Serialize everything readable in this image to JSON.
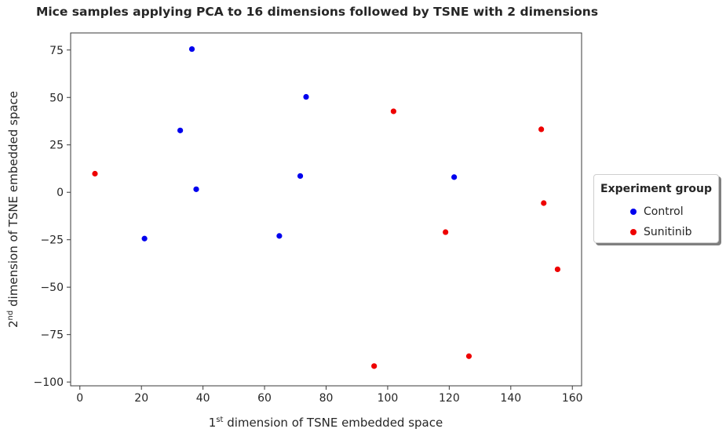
{
  "chart_data": {
    "type": "scatter",
    "title": "Mice samples applying PCA to 16 dimensions followed by TSNE with 2 dimensions",
    "xlabel": {
      "prefix": "1",
      "sup": "st",
      "suffix": " dimension of TSNE embedded space"
    },
    "ylabel": {
      "prefix": "2",
      "sup": "nd",
      "suffix": " dimension of TSNE embedded space"
    },
    "xlim": [
      -3,
      163
    ],
    "ylim": [
      -102,
      84
    ],
    "xticks": [
      0,
      20,
      40,
      60,
      80,
      100,
      120,
      140,
      160
    ],
    "yticks": [
      -100,
      -75,
      -50,
      -25,
      0,
      25,
      50,
      75
    ],
    "xtick_labels": [
      "0",
      "20",
      "40",
      "60",
      "80",
      "100",
      "120",
      "140",
      "160"
    ],
    "ytick_labels": [
      "−100",
      "−75",
      "−50",
      "−25",
      "0",
      "25",
      "50",
      "75"
    ],
    "grid": false,
    "legend_title": "Experiment group",
    "legend_position": "right",
    "series": [
      {
        "name": "Control",
        "color": "#0000ee",
        "points": [
          [
            36.4,
            75.5
          ],
          [
            73.5,
            50.3
          ],
          [
            32.6,
            32.6
          ],
          [
            71.6,
            8.6
          ],
          [
            121.6,
            8.0
          ],
          [
            37.8,
            1.6
          ],
          [
            21.0,
            -24.4
          ],
          [
            64.8,
            -23.0
          ]
        ]
      },
      {
        "name": "Sunitinib",
        "color": "#ee0000",
        "points": [
          [
            101.9,
            42.7
          ],
          [
            149.9,
            33.2
          ],
          [
            4.9,
            9.8
          ],
          [
            150.7,
            -5.7
          ],
          [
            118.8,
            -21.0
          ],
          [
            155.2,
            -40.6
          ],
          [
            126.4,
            -86.4
          ],
          [
            95.6,
            -91.6
          ]
        ]
      }
    ]
  }
}
